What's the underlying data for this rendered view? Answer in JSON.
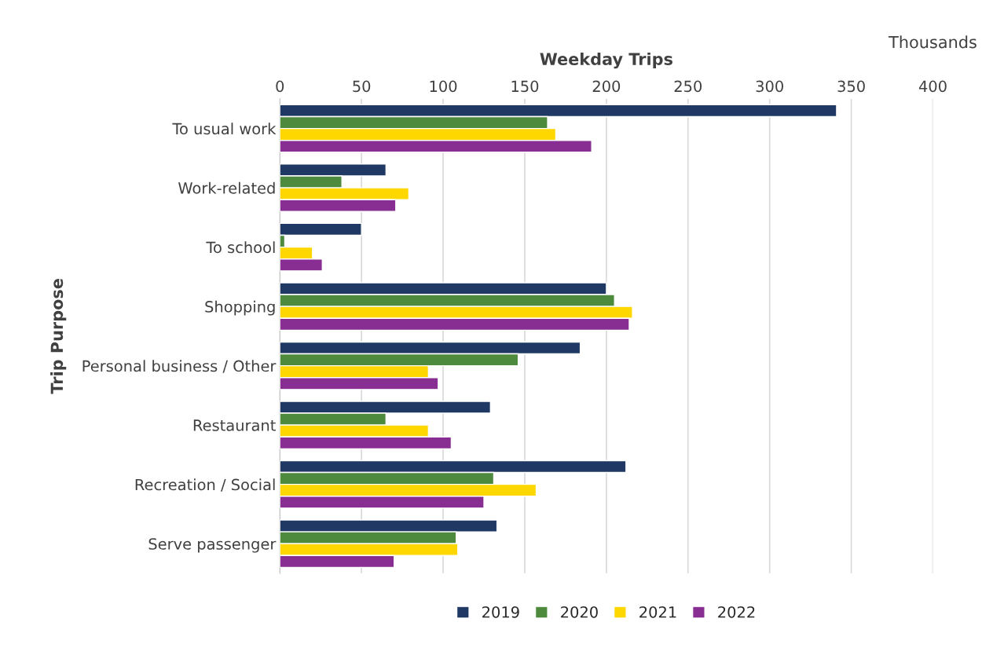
{
  "chart_data": {
    "type": "bar",
    "orientation": "horizontal",
    "xlabel": "Weekday Trips",
    "ylabel": "Trip Purpose",
    "annotations": [
      "Thousands"
    ],
    "categories": [
      "To usual work",
      "Work-related",
      "To school",
      "Shopping",
      "Personal business / Other",
      "Restaurant",
      "Recreation / Social",
      "Serve passenger"
    ],
    "series": [
      {
        "name": "2019",
        "color": "#1f3864",
        "values": [
          341,
          65,
          50,
          200,
          184,
          129,
          212,
          133
        ]
      },
      {
        "name": "2020",
        "color": "#4e8a3e",
        "values": [
          164,
          38,
          3,
          205,
          146,
          65,
          131,
          108
        ]
      },
      {
        "name": "2021",
        "color": "#ffd700",
        "values": [
          169,
          79,
          20,
          216,
          91,
          91,
          157,
          109
        ]
      },
      {
        "name": "2022",
        "color": "#882d91",
        "values": [
          191,
          71,
          26,
          214,
          97,
          105,
          125,
          70
        ]
      }
    ],
    "xlim": [
      0,
      400
    ],
    "xticks": [
      0,
      50,
      100,
      150,
      200,
      250,
      300,
      350,
      400
    ],
    "grid": "x",
    "legend": "bottom"
  }
}
